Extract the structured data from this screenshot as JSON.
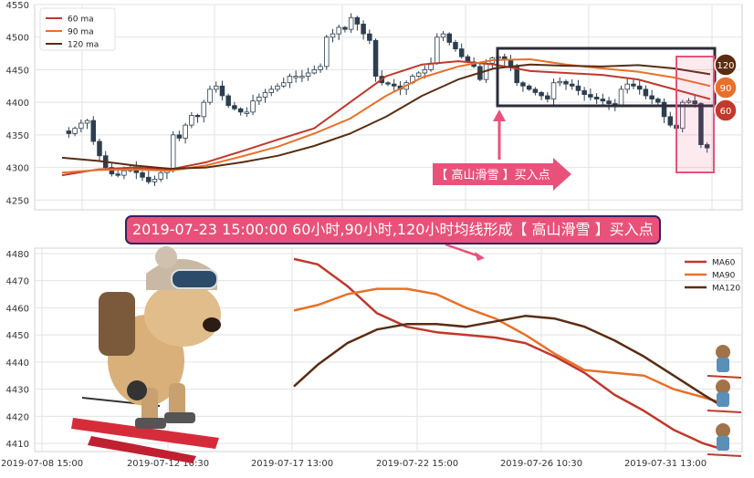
{
  "colors": {
    "ma60": "#c0392b",
    "ma90": "#e8702a",
    "ma120": "#5a2d12",
    "candle": "#2c3e50",
    "highlight": "#e8527a",
    "box": "#2c2c3a",
    "banner_border": "#3b1f5c",
    "grid": "#e3e3e3"
  },
  "top_chart": {
    "legend": [
      "60 ma",
      "90 ma",
      "120 ma"
    ],
    "yticks": [
      "4550",
      "4500",
      "4450",
      "4400",
      "4350",
      "4300",
      "4250"
    ],
    "ylim": [
      4235,
      4550
    ],
    "badges": [
      "120",
      "90",
      "60"
    ],
    "signal_label": "【 高山滑雪 】买入点"
  },
  "banner_text": "2019-07-23 15:00:00 60小时,90小时,120小时均线形成【 高山滑雪 】买入点",
  "chart_data": [
    {
      "type": "line",
      "legend_placement": "top-left",
      "grid": true,
      "x_index_range": [
        0,
        180
      ],
      "ylim": [
        4235,
        4550
      ],
      "series": [
        {
          "name": "60 ma",
          "x": [
            0,
            10,
            20,
            30,
            40,
            50,
            60,
            70,
            80,
            90,
            100,
            110,
            120,
            130,
            140,
            150,
            160,
            170,
            180
          ],
          "values": [
            4288,
            4297,
            4300,
            4297,
            4308,
            4325,
            4343,
            4360,
            4400,
            4440,
            4458,
            4463,
            4458,
            4448,
            4445,
            4442,
            4435,
            4420,
            4405
          ]
        },
        {
          "name": "90 ma",
          "x": [
            0,
            10,
            20,
            30,
            40,
            50,
            60,
            70,
            80,
            90,
            100,
            110,
            120,
            130,
            140,
            150,
            160,
            170,
            180
          ],
          "values": [
            4292,
            4296,
            4297,
            4295,
            4303,
            4317,
            4332,
            4352,
            4375,
            4410,
            4438,
            4455,
            4465,
            4466,
            4458,
            4452,
            4447,
            4438,
            4425
          ]
        },
        {
          "name": "120 ma",
          "x": [
            0,
            10,
            20,
            30,
            40,
            50,
            60,
            70,
            80,
            90,
            100,
            110,
            120,
            130,
            140,
            150,
            160,
            170,
            180
          ],
          "values": [
            4315,
            4310,
            4303,
            4298,
            4300,
            4308,
            4318,
            4333,
            4352,
            4378,
            4410,
            4435,
            4452,
            4458,
            4456,
            4455,
            4457,
            4452,
            4443
          ]
        }
      ],
      "candles_close": [
        4352,
        4360,
        4368,
        4372,
        4340,
        4318,
        4300,
        4290,
        4288,
        4295,
        4300,
        4292,
        4285,
        4278,
        4282,
        4292,
        4296,
        4350,
        4345,
        4365,
        4380,
        4378,
        4400,
        4420,
        4425,
        4410,
        4395,
        4390,
        4385,
        4385,
        4402,
        4408,
        4415,
        4420,
        4425,
        4430,
        4440,
        4440,
        4440,
        4445,
        4450,
        4455,
        4500,
        4505,
        4515,
        4512,
        4530,
        4520,
        4505,
        4495,
        4440,
        4430,
        4428,
        4425,
        4420,
        4430,
        4440,
        4445,
        4450,
        4460,
        4500,
        4505,
        4492,
        4482,
        4470,
        4462,
        4455,
        4435,
        4460,
        4468,
        4470,
        4465,
        4455,
        4430,
        4425,
        4420,
        4415,
        4410,
        4405,
        4430,
        4432,
        4428,
        4425,
        4418,
        4412,
        4408,
        4405,
        4402,
        4398,
        4395,
        4420,
        4428,
        4425,
        4420,
        4410,
        4405,
        4400,
        4378,
        4365,
        4360,
        4400,
        4402,
        4398,
        4335,
        4330
      ]
    },
    {
      "type": "line",
      "legend_placement": "top-right",
      "grid": true,
      "xlabel": "",
      "ylabel": "",
      "ylim": [
        4407,
        4482
      ],
      "yticks": [
        "4480",
        "4470",
        "4460",
        "4450",
        "4440",
        "4430",
        "4420",
        "4410"
      ],
      "xticks": [
        "2019-07-08 15:00",
        "2019-07-12 10:30",
        "2019-07-17 13:00",
        "2019-07-22 15:00",
        "2019-07-26 10:30",
        "2019-07-31 13:00"
      ],
      "x_index_range": [
        0,
        108
      ],
      "series": [
        {
          "name": "MA60",
          "x": [
            36,
            40,
            45,
            50,
            55,
            60,
            65,
            70,
            75,
            80,
            85,
            90,
            95,
            100,
            105,
            108
          ],
          "values": [
            4478,
            4476,
            4468,
            4458,
            4453,
            4451,
            4450,
            4449,
            4447,
            4442,
            4436,
            4428,
            4422,
            4415,
            4410,
            4408
          ]
        },
        {
          "name": "MA90",
          "x": [
            36,
            40,
            45,
            50,
            55,
            60,
            65,
            70,
            75,
            80,
            85,
            90,
            95,
            100,
            105,
            108
          ],
          "values": [
            4459,
            4461,
            4465,
            4467,
            4467,
            4465,
            4460,
            4456,
            4450,
            4443,
            4437,
            4436,
            4435,
            4430,
            4427,
            4425
          ]
        },
        {
          "name": "MA120",
          "x": [
            36,
            40,
            45,
            50,
            55,
            60,
            65,
            70,
            75,
            80,
            85,
            90,
            95,
            100,
            105,
            108
          ],
          "values": [
            4431,
            4439,
            4447,
            4452,
            4454,
            4454,
            4453,
            4455,
            4457,
            4456,
            4453,
            4448,
            4442,
            4435,
            4428,
            4424
          ]
        }
      ]
    }
  ]
}
